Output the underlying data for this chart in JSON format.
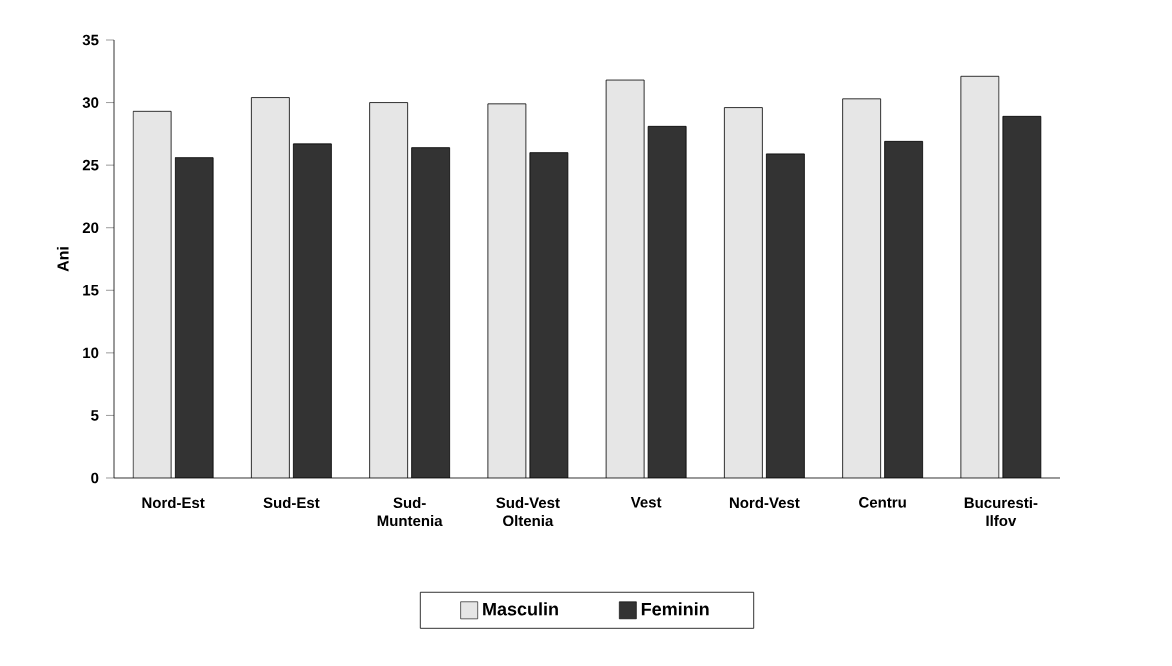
{
  "chart_data": {
    "type": "bar",
    "ylabel": "Ani",
    "categories": [
      "Nord-Est",
      "Sud-Est",
      "Sud-Muntenia",
      "Sud-Vest Oltenia",
      "Vest",
      "Nord-Vest",
      "Centru",
      "Bucuresti-Ilfov"
    ],
    "series": [
      {
        "name": "Masculin",
        "color": "#e6e6e6",
        "values": [
          29.3,
          30.4,
          30.0,
          29.9,
          31.8,
          29.6,
          30.3,
          32.1
        ]
      },
      {
        "name": "Feminin",
        "color": "#333333",
        "values": [
          25.6,
          26.7,
          26.4,
          26.0,
          28.1,
          25.9,
          26.9,
          28.9
        ]
      }
    ],
    "ylim": [
      0,
      35
    ],
    "yticks": [
      0,
      5,
      10,
      15,
      20,
      25,
      30,
      35
    ],
    "grid": false,
    "legend": "bottom"
  }
}
